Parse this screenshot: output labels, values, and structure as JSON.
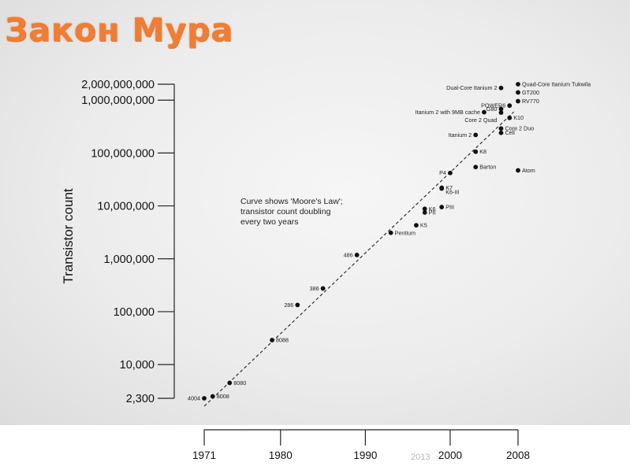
{
  "slide_title": "Закон Мура",
  "watermark": "2013",
  "chart_data": {
    "type": "scatter",
    "ylabel": "Transistor count",
    "yscale": "log",
    "xlim": [
      1971,
      2008
    ],
    "ylim": [
      2300,
      2000000000
    ],
    "y_ticks": [
      {
        "value": 2000000000,
        "label": "2,000,000,000"
      },
      {
        "value": 1000000000,
        "label": "1,000,000,000"
      },
      {
        "value": 100000000,
        "label": "100,000,000"
      },
      {
        "value": 10000000,
        "label": "10,000,000"
      },
      {
        "value": 1000000,
        "label": "1,000,000"
      },
      {
        "value": 100000,
        "label": "100,000"
      },
      {
        "value": 10000,
        "label": "10,000"
      },
      {
        "value": 2300,
        "label": "2,300"
      }
    ],
    "x_ticks": [
      {
        "value": 1971,
        "label": "1971"
      },
      {
        "value": 1980,
        "label": "1980"
      },
      {
        "value": 1990,
        "label": "1990"
      },
      {
        "value": 2000,
        "label": "2000"
      },
      {
        "value": 2008,
        "label": "2008"
      }
    ],
    "annotation": "Curve shows 'Moore's Law';\ntransistor count doubling\nevery two years",
    "trend_line": {
      "x": [
        1971,
        2007.5
      ],
      "y": [
        2000,
        600000000
      ]
    },
    "points": [
      {
        "label": "4004",
        "x": 1971,
        "y": 2300,
        "side": "left"
      },
      {
        "label": "8008",
        "x": 1972,
        "y": 2500,
        "side": "right"
      },
      {
        "label": "8080",
        "x": 1974,
        "y": 4500,
        "side": "right"
      },
      {
        "label": "8088",
        "x": 1979,
        "y": 29000,
        "side": "right"
      },
      {
        "label": "286",
        "x": 1982,
        "y": 134000,
        "side": "left"
      },
      {
        "label": "386",
        "x": 1985,
        "y": 275000,
        "side": "left"
      },
      {
        "label": "486",
        "x": 1989,
        "y": 1180000,
        "side": "left"
      },
      {
        "label": "Pentium",
        "x": 1993,
        "y": 3100000,
        "side": "right"
      },
      {
        "label": "K5",
        "x": 1996,
        "y": 4300000,
        "side": "right"
      },
      {
        "label": "K6",
        "x": 1997,
        "y": 8800000,
        "side": "right"
      },
      {
        "label": "PII",
        "x": 1997,
        "y": 7500000,
        "side": "right"
      },
      {
        "label": "PIII",
        "x": 1999,
        "y": 9500000,
        "side": "right"
      },
      {
        "label": "K7",
        "x": 1999,
        "y": 22000000,
        "side": "right"
      },
      {
        "label": "K6-III",
        "x": 1999,
        "y": 21300000,
        "side": "right-below"
      },
      {
        "label": "P4",
        "x": 2000,
        "y": 42000000,
        "side": "left"
      },
      {
        "label": "Barton",
        "x": 2003,
        "y": 54300000,
        "side": "right"
      },
      {
        "label": "K8",
        "x": 2003,
        "y": 105900000,
        "side": "right"
      },
      {
        "label": "Itanium 2",
        "x": 2003,
        "y": 220000000,
        "side": "left"
      },
      {
        "label": "Core 2 Duo",
        "x": 2006,
        "y": 291000000,
        "side": "right"
      },
      {
        "label": "Cell",
        "x": 2006,
        "y": 241000000,
        "side": "right"
      },
      {
        "label": "Core 2 Quad",
        "x": 2006,
        "y": 582000000,
        "side": "left-below"
      },
      {
        "label": "K10",
        "x": 2007,
        "y": 463000000,
        "side": "right"
      },
      {
        "label": "Itanium 2 with 9MB cache",
        "x": 2004,
        "y": 592000000,
        "side": "left"
      },
      {
        "label": "G80",
        "x": 2006,
        "y": 681000000,
        "side": "left"
      },
      {
        "label": "POWER6",
        "x": 2007,
        "y": 789000000,
        "side": "left"
      },
      {
        "label": "RV770",
        "x": 2008,
        "y": 956000000,
        "side": "right"
      },
      {
        "label": "GT200",
        "x": 2008,
        "y": 1400000000,
        "side": "right"
      },
      {
        "label": "Dual-Core Itanium 2",
        "x": 2006,
        "y": 1700000000,
        "side": "left"
      },
      {
        "label": "Quad-Core Itanium Tukwila",
        "x": 2008,
        "y": 2000000000,
        "side": "right"
      },
      {
        "label": "Atom",
        "x": 2008,
        "y": 47000000,
        "side": "right"
      }
    ]
  }
}
